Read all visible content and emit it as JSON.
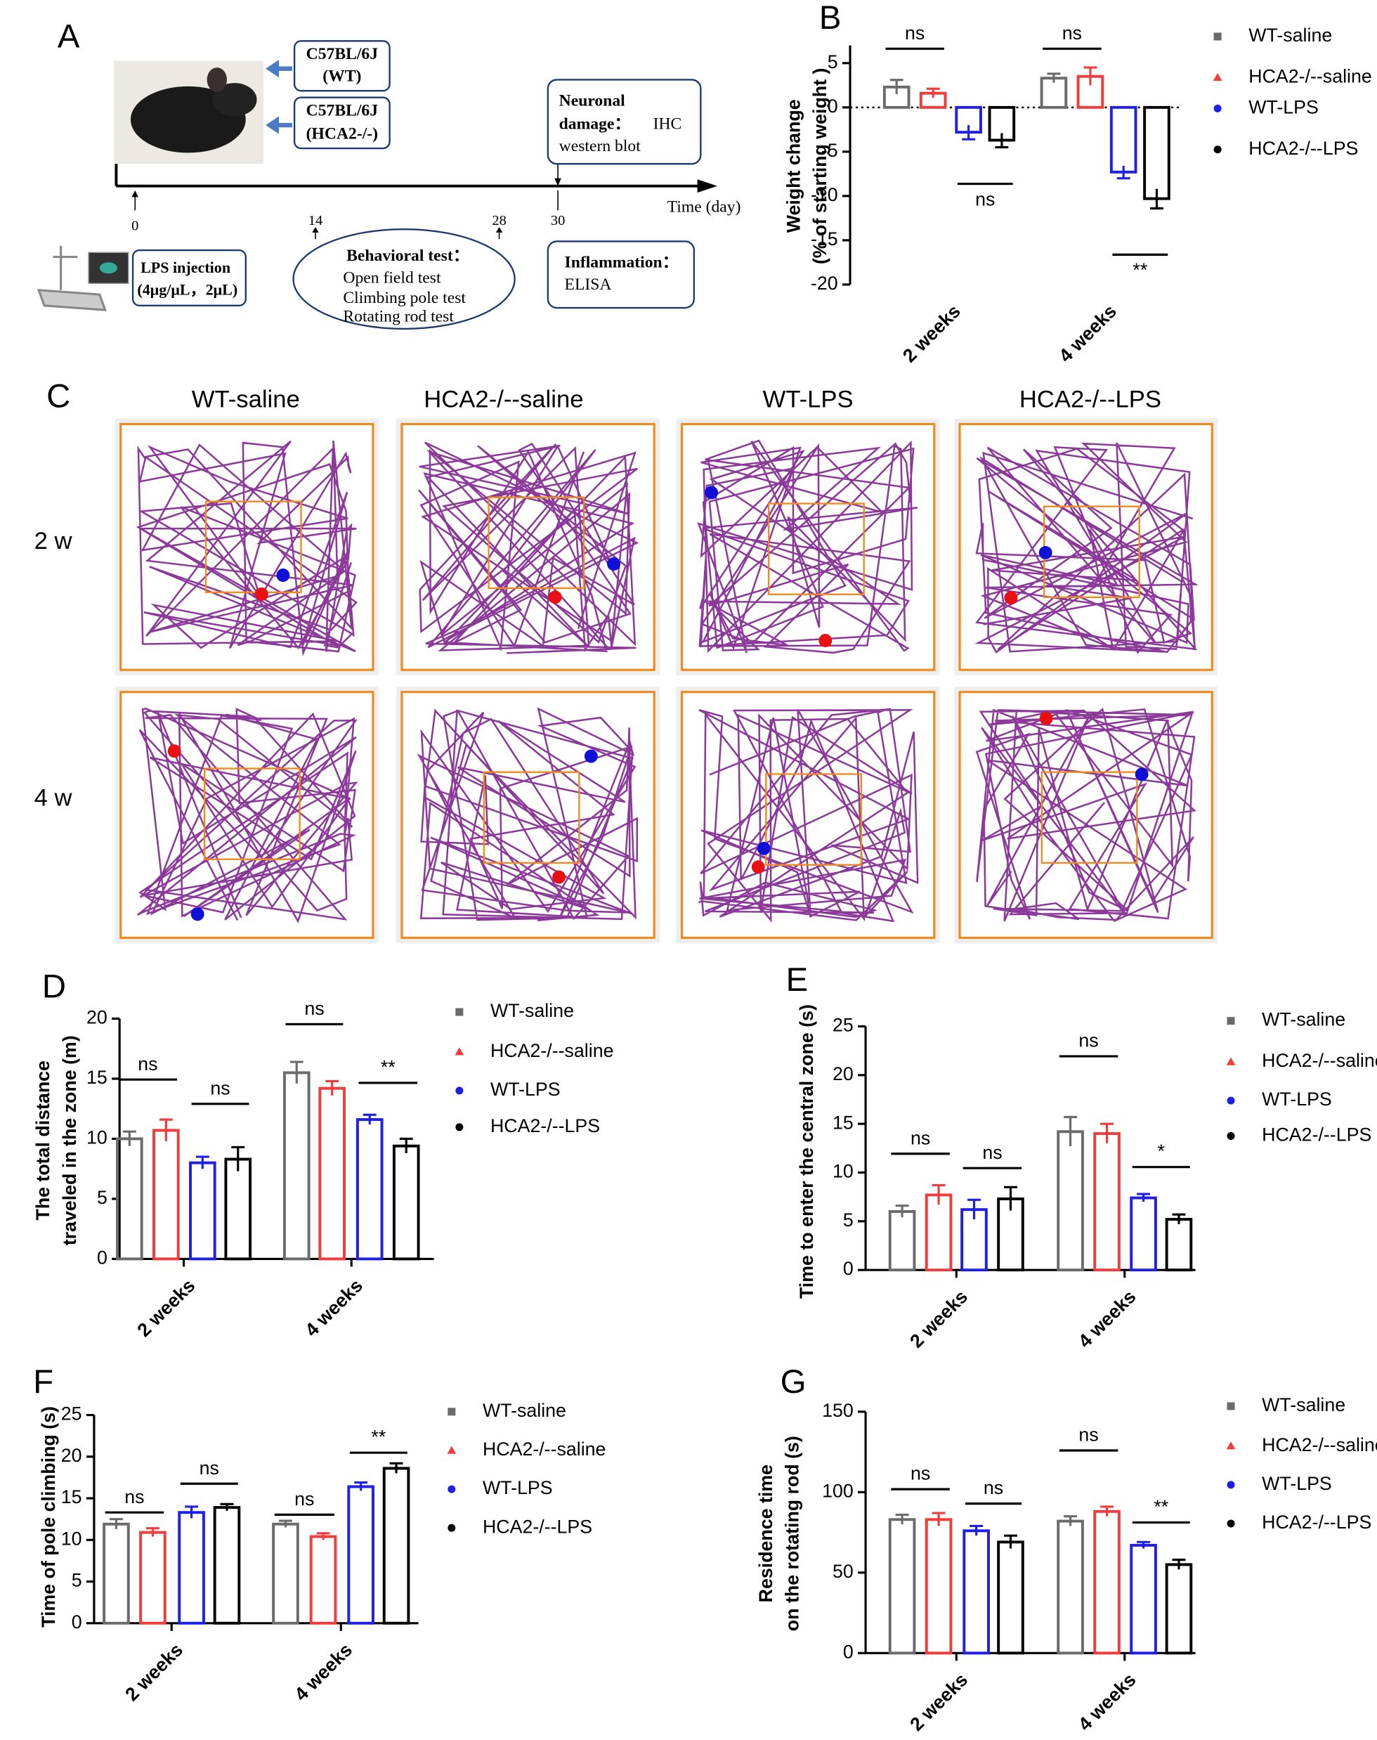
{
  "panel_labels": [
    "A",
    "B",
    "C",
    "D",
    "E",
    "F",
    "G"
  ],
  "diagram": {
    "strains": [
      [
        "C57BL/6J",
        "(WT)"
      ],
      [
        "C57BL/6J",
        "(HCA2-/-)"
      ]
    ],
    "time_label": "Time (day)",
    "days": [
      "0",
      "14",
      "28",
      "30"
    ],
    "injection": [
      "LPS injection",
      "(4μg/μL，2μL)"
    ],
    "behavioral": {
      "title": "Behavioral test：",
      "tests": [
        "Open field test",
        "Climbing pole test",
        "Rotating rod test"
      ]
    },
    "neuronal": [
      "Neuronal",
      "damage：",
      "IHC",
      "western blot"
    ],
    "inflammation": [
      "Inflammation：",
      "ELISA"
    ]
  },
  "tracks": {
    "columns": [
      "WT-saline",
      "HCA2-/--saline",
      "WT-LPS",
      "HCA2-/--LPS"
    ],
    "rows": [
      "2 w",
      "4 w"
    ]
  },
  "chart_data": [
    {
      "type": "bar",
      "ylabel": [
        "Weight change",
        "(% of starting weight )"
      ],
      "categories": [
        "2 weeks",
        "4 weeks"
      ],
      "series": [
        {
          "name": "WT-saline",
          "color": "#6b6b6b",
          "marker": "square",
          "values": [
            2.3,
            3.3
          ],
          "errors": [
            0.8,
            0.5
          ]
        },
        {
          "name": "HCA2-/--saline",
          "color": "#f23b3b",
          "marker": "triangle",
          "values": [
            1.6,
            3.5
          ],
          "errors": [
            0.5,
            1.0
          ]
        },
        {
          "name": "WT-LPS",
          "color": "#1f1fe8",
          "marker": "circle",
          "values": [
            -2.8,
            -7.3
          ],
          "errors": [
            0.8,
            0.7
          ]
        },
        {
          "name": "HCA2-/--LPS",
          "color": "#000000",
          "marker": "circle",
          "values": [
            -3.7,
            -10.3
          ],
          "errors": [
            0.8,
            1.1
          ]
        }
      ],
      "ylim": [
        -20,
        7
      ],
      "yticks": [
        5,
        0,
        -5,
        -10,
        -15,
        -20
      ],
      "zero_line": "dotted",
      "annotations": [
        "ns",
        "ns",
        "ns",
        "**"
      ]
    },
    {
      "type": "bar",
      "ylabel": [
        "The total distance",
        "traveled in the zone (m)"
      ],
      "categories": [
        "2 weeks",
        "4 weeks"
      ],
      "series": [
        {
          "name": "WT-saline",
          "color": "#6b6b6b",
          "marker": "square",
          "values": [
            10.0,
            15.5
          ],
          "errors": [
            0.6,
            0.9
          ]
        },
        {
          "name": "HCA2-/--saline",
          "color": "#f23b3b",
          "marker": "triangle",
          "values": [
            10.7,
            14.2
          ],
          "errors": [
            0.9,
            0.6
          ]
        },
        {
          "name": "WT-LPS",
          "color": "#1f1fe8",
          "marker": "circle",
          "values": [
            8.0,
            11.6
          ],
          "errors": [
            0.5,
            0.4
          ]
        },
        {
          "name": "HCA2-/--LPS",
          "color": "#000000",
          "marker": "circle",
          "values": [
            8.3,
            9.4
          ],
          "errors": [
            1.0,
            0.6
          ]
        }
      ],
      "ylim": [
        0,
        20
      ],
      "yticks": [
        0,
        5,
        10,
        15,
        20
      ],
      "annotations": [
        "ns",
        "ns",
        "ns",
        "**"
      ]
    },
    {
      "type": "bar",
      "ylabel": [
        "Time to enter the central zone (s)"
      ],
      "categories": [
        "2 weeks",
        "4 weeks"
      ],
      "series": [
        {
          "name": "WT-saline",
          "color": "#6b6b6b",
          "marker": "square",
          "values": [
            6.0,
            14.2
          ],
          "errors": [
            0.6,
            1.5
          ]
        },
        {
          "name": "HCA2-/--saline",
          "color": "#f23b3b",
          "marker": "triangle",
          "values": [
            7.7,
            14.0
          ],
          "errors": [
            1.0,
            1.0
          ]
        },
        {
          "name": "WT-LPS",
          "color": "#1f1fe8",
          "marker": "circle",
          "values": [
            6.2,
            7.4
          ],
          "errors": [
            1.0,
            0.4
          ]
        },
        {
          "name": "HCA2-/--LPS",
          "color": "#000000",
          "marker": "circle",
          "values": [
            7.3,
            5.2
          ],
          "errors": [
            1.2,
            0.5
          ]
        }
      ],
      "ylim": [
        0,
        25
      ],
      "yticks": [
        0,
        5,
        10,
        15,
        20,
        25
      ],
      "annotations": [
        "ns",
        "ns",
        "ns",
        "*"
      ]
    },
    {
      "type": "bar",
      "ylabel": [
        "Time of pole climbing (s)"
      ],
      "categories": [
        "2 weeks",
        "4 weeks"
      ],
      "series": [
        {
          "name": "WT-saline",
          "color": "#6b6b6b",
          "marker": "square",
          "values": [
            11.9,
            11.9
          ],
          "errors": [
            0.6,
            0.4
          ]
        },
        {
          "name": "HCA2-/--saline",
          "color": "#f23b3b",
          "marker": "triangle",
          "values": [
            10.9,
            10.4
          ],
          "errors": [
            0.5,
            0.4
          ]
        },
        {
          "name": "WT-LPS",
          "color": "#1f1fe8",
          "marker": "circle",
          "values": [
            13.3,
            16.4
          ],
          "errors": [
            0.7,
            0.5
          ]
        },
        {
          "name": "HCA2-/--LPS",
          "color": "#000000",
          "marker": "circle",
          "values": [
            13.9,
            18.6
          ],
          "errors": [
            0.4,
            0.6
          ]
        }
      ],
      "ylim": [
        0,
        25
      ],
      "yticks": [
        0,
        5,
        10,
        15,
        20,
        25
      ],
      "annotations": [
        "ns",
        "ns",
        "ns",
        "**"
      ]
    },
    {
      "type": "bar",
      "ylabel": [
        "Residence time",
        "on the rotating rod (s)"
      ],
      "categories": [
        "2 weeks",
        "4 weeks"
      ],
      "series": [
        {
          "name": "WT-saline",
          "color": "#6b6b6b",
          "marker": "square",
          "values": [
            83,
            82
          ],
          "errors": [
            3,
            3
          ]
        },
        {
          "name": "HCA2-/--saline",
          "color": "#f23b3b",
          "marker": "triangle",
          "values": [
            83,
            88
          ],
          "errors": [
            4,
            3
          ]
        },
        {
          "name": "WT-LPS",
          "color": "#1f1fe8",
          "marker": "circle",
          "values": [
            76,
            67
          ],
          "errors": [
            3,
            2
          ]
        },
        {
          "name": "HCA2-/--LPS",
          "color": "#000000",
          "marker": "circle",
          "values": [
            69,
            55
          ],
          "errors": [
            4,
            3
          ]
        }
      ],
      "ylim": [
        0,
        150
      ],
      "yticks": [
        0,
        50,
        100,
        150
      ],
      "annotations": [
        "ns",
        "ns",
        "ns",
        "**"
      ]
    }
  ]
}
